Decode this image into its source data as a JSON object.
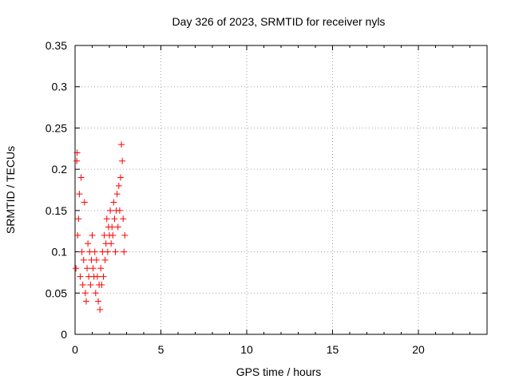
{
  "chart_data": {
    "type": "scatter",
    "title": "Day 326 of 2023, SRMTID for receiver nyls",
    "xlabel": "GPS time / hours",
    "ylabel": "SRMTID / TECUs",
    "xlim": [
      0,
      24
    ],
    "ylim": [
      0,
      0.35
    ],
    "xticks": [
      0,
      5,
      10,
      15,
      20
    ],
    "xtick_labels": [
      "0",
      "5",
      "10",
      "15",
      "20"
    ],
    "yticks": [
      0,
      0.05,
      0.1,
      0.15,
      0.2,
      0.25,
      0.3,
      0.35
    ],
    "ytick_labels": [
      "0",
      "0.05",
      "0.1",
      "0.15",
      "0.2",
      "0.25",
      "0.3",
      "0.35"
    ],
    "grid": true,
    "marker": "+",
    "color": "#ff0000",
    "series": [
      {
        "name": "SRMTID",
        "points": [
          [
            0.05,
            0.08
          ],
          [
            0.1,
            0.21
          ],
          [
            0.12,
            0.22
          ],
          [
            0.15,
            0.12
          ],
          [
            0.2,
            0.14
          ],
          [
            0.25,
            0.17
          ],
          [
            0.3,
            0.07
          ],
          [
            0.35,
            0.19
          ],
          [
            0.4,
            0.1
          ],
          [
            0.45,
            0.06
          ],
          [
            0.5,
            0.09
          ],
          [
            0.55,
            0.16
          ],
          [
            0.6,
            0.05
          ],
          [
            0.65,
            0.04
          ],
          [
            0.7,
            0.08
          ],
          [
            0.75,
            0.11
          ],
          [
            0.8,
            0.07
          ],
          [
            0.85,
            0.1
          ],
          [
            0.9,
            0.06
          ],
          [
            0.95,
            0.09
          ],
          [
            1.0,
            0.12
          ],
          [
            1.05,
            0.08
          ],
          [
            1.1,
            0.07
          ],
          [
            1.15,
            0.1
          ],
          [
            1.2,
            0.05
          ],
          [
            1.25,
            0.09
          ],
          [
            1.3,
            0.07
          ],
          [
            1.35,
            0.04
          ],
          [
            1.4,
            0.06
          ],
          [
            1.45,
            0.03
          ],
          [
            1.5,
            0.08
          ],
          [
            1.55,
            0.06
          ],
          [
            1.6,
            0.1
          ],
          [
            1.65,
            0.07
          ],
          [
            1.7,
            0.12
          ],
          [
            1.75,
            0.09
          ],
          [
            1.8,
            0.11
          ],
          [
            1.85,
            0.14
          ],
          [
            1.9,
            0.1
          ],
          [
            1.95,
            0.13
          ],
          [
            2.0,
            0.12
          ],
          [
            2.05,
            0.15
          ],
          [
            2.1,
            0.11
          ],
          [
            2.15,
            0.13
          ],
          [
            2.2,
            0.12
          ],
          [
            2.25,
            0.16
          ],
          [
            2.3,
            0.14
          ],
          [
            2.35,
            0.1
          ],
          [
            2.4,
            0.15
          ],
          [
            2.45,
            0.17
          ],
          [
            2.5,
            0.13
          ],
          [
            2.55,
            0.18
          ],
          [
            2.6,
            0.15
          ],
          [
            2.65,
            0.19
          ],
          [
            2.7,
            0.23
          ],
          [
            2.75,
            0.21
          ],
          [
            2.8,
            0.14
          ],
          [
            2.85,
            0.1
          ],
          [
            2.9,
            0.12
          ]
        ]
      }
    ]
  }
}
